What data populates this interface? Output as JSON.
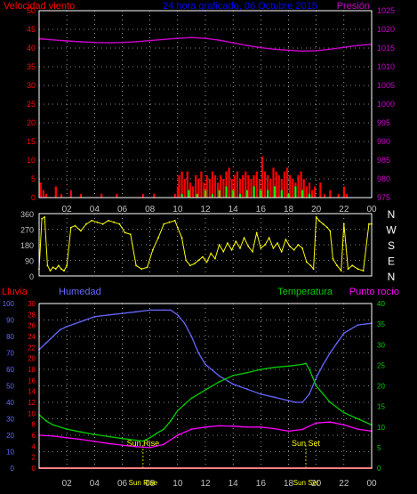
{
  "colors": {
    "background": "#000000",
    "frame": "#ffffff",
    "grid": "#ffffff",
    "wind": "#ff0000",
    "gust": "#00ff00",
    "pressure": "#cc00cc",
    "direction": "#ffff00",
    "humidity": "#6666ff",
    "temperature": "#00cc00",
    "dewpoint": "#ff00ff",
    "rain": "#ff0000",
    "title": "#0000ff",
    "sun": "#ffff00",
    "tick_text": "#c0c0c0"
  },
  "chart_data": [
    {
      "type": "bar",
      "title": "24 hora graficado, 06 Octubre 2015",
      "left_axis_label": "Velocidad viento",
      "right_axis_label": "Presión",
      "x_ticks": [
        "02",
        "04",
        "06",
        "08",
        "10",
        "12",
        "14",
        "16",
        "18",
        "20",
        "22",
        "00"
      ],
      "x_range": [
        0,
        24
      ],
      "y_left_range": [
        0,
        50
      ],
      "y_left_ticks": [
        "0",
        "5",
        "10",
        "15",
        "20",
        "25",
        "30",
        "35",
        "40",
        "45",
        "50"
      ],
      "y_right_range": [
        975,
        1025
      ],
      "y_right_ticks": [
        "975",
        "980",
        "985",
        "990",
        "995",
        "1000",
        "1005",
        "1010",
        "1015",
        "1020",
        "1025"
      ],
      "grid": "dotted",
      "series": [
        {
          "name": "Velocidad viento",
          "axis": "left",
          "style": "bars",
          "color_key": "wind",
          "x": [
            0.1,
            0.3,
            0.5,
            1.2,
            1.6,
            2.3,
            3.0,
            4.5,
            5.6,
            7.5,
            8.3,
            9.8,
            10.0,
            10.1,
            10.3,
            10.5,
            10.7,
            10.9,
            11.1,
            11.3,
            11.5,
            11.7,
            11.9,
            12.1,
            12.3,
            12.5,
            12.7,
            12.9,
            13.1,
            13.3,
            13.5,
            13.7,
            13.9,
            14.1,
            14.3,
            14.5,
            14.7,
            14.9,
            15.1,
            15.3,
            15.5,
            15.7,
            15.9,
            16.1,
            16.3,
            16.5,
            16.7,
            16.9,
            17.1,
            17.3,
            17.5,
            17.7,
            17.9,
            18.1,
            18.3,
            18.5,
            18.7,
            18.9,
            19.1,
            19.3,
            19.5,
            19.7,
            19.9,
            20.3,
            20.6,
            21.0,
            21.6,
            22.0,
            22.2
          ],
          "values": [
            4,
            2,
            1,
            3,
            1,
            2,
            1,
            1,
            1,
            1,
            1,
            1,
            3,
            6,
            7,
            5,
            7,
            4,
            3,
            6,
            5,
            7,
            4,
            6,
            5,
            7,
            6,
            4,
            6,
            5,
            7,
            8,
            5,
            6,
            7,
            5,
            6,
            7,
            6,
            5,
            6,
            7,
            5,
            11,
            7,
            6,
            5,
            8,
            7,
            6,
            5,
            7,
            8,
            6,
            5,
            4,
            6,
            7,
            5,
            3,
            4,
            2,
            3,
            4,
            1,
            2,
            1,
            3,
            1
          ]
        },
        {
          "name": "Racha",
          "axis": "left",
          "style": "bars",
          "color_key": "gust",
          "x": [
            10.3,
            10.8,
            11.4,
            12.0,
            12.5,
            13.0,
            13.5,
            14.0,
            14.5,
            15.0,
            15.5,
            16.0,
            16.5,
            17.0,
            17.5,
            18.0,
            18.5,
            19.0,
            19.5
          ],
          "values": [
            1,
            2,
            1,
            2,
            1,
            2,
            3,
            2,
            1,
            2,
            3,
            2,
            2,
            3,
            2,
            1,
            3,
            2,
            1
          ]
        },
        {
          "name": "Presión",
          "axis": "right",
          "style": "line",
          "color_key": "pressure",
          "x": [
            0,
            1,
            2,
            3,
            4,
            5,
            6,
            7,
            8,
            9,
            10,
            11,
            12,
            13,
            14,
            15,
            16,
            17,
            18,
            19,
            20,
            21,
            22,
            23,
            24
          ],
          "values": [
            1017.5,
            1017.2,
            1016.9,
            1016.7,
            1016.5,
            1016.4,
            1016.5,
            1016.7,
            1017.0,
            1017.3,
            1017.6,
            1017.8,
            1017.6,
            1017.1,
            1016.4,
            1015.7,
            1015.1,
            1014.7,
            1014.4,
            1014.2,
            1014.3,
            1014.7,
            1015.2,
            1015.7,
            1016.0
          ]
        }
      ]
    },
    {
      "type": "line",
      "left_axis_ticks": [
        "0",
        "90",
        "180",
        "270",
        "360"
      ],
      "right_axis_labels": [
        "N",
        "W",
        "S",
        "E",
        "N"
      ],
      "y_range": [
        0,
        360
      ],
      "x_range": [
        0,
        24
      ],
      "x_ticks": [
        "02",
        "04",
        "06",
        "08",
        "10",
        "12",
        "14",
        "16",
        "18",
        "20",
        "22",
        "00"
      ],
      "series": [
        {
          "name": "Dirección viento",
          "color_key": "direction",
          "x": [
            0.0,
            0.2,
            0.4,
            0.6,
            0.8,
            1.0,
            1.2,
            1.4,
            1.6,
            1.8,
            2.0,
            2.3,
            2.6,
            3.0,
            3.4,
            3.8,
            4.2,
            4.6,
            5.0,
            5.4,
            5.8,
            6.2,
            6.6,
            7.0,
            7.4,
            7.8,
            8.2,
            8.6,
            9.0,
            9.4,
            9.8,
            10.0,
            10.3,
            10.6,
            10.9,
            11.2,
            11.5,
            11.8,
            12.1,
            12.4,
            12.7,
            13.0,
            13.3,
            13.6,
            13.9,
            14.2,
            14.5,
            14.8,
            15.1,
            15.4,
            15.7,
            16.0,
            16.3,
            16.6,
            16.9,
            17.2,
            17.5,
            17.8,
            18.1,
            18.4,
            18.7,
            19.0,
            19.3,
            19.6,
            19.8,
            20.0,
            20.2,
            20.5,
            20.8,
            21.0,
            21.2,
            21.5,
            21.8,
            22.0,
            22.3,
            22.6,
            23.0,
            23.4,
            23.8,
            24.0
          ],
          "values": [
            40,
            330,
            340,
            60,
            30,
            50,
            40,
            60,
            40,
            30,
            60,
            280,
            290,
            260,
            300,
            320,
            310,
            300,
            320,
            310,
            300,
            250,
            240,
            60,
            40,
            50,
            150,
            220,
            300,
            310,
            320,
            280,
            220,
            90,
            60,
            70,
            90,
            110,
            80,
            130,
            100,
            180,
            140,
            190,
            150,
            200,
            160,
            220,
            170,
            140,
            250,
            160,
            180,
            220,
            160,
            190,
            140,
            210,
            170,
            150,
            180,
            160,
            80,
            60,
            40,
            340,
            320,
            300,
            280,
            260,
            100,
            60,
            30,
            300,
            40,
            60,
            40,
            30,
            300,
            300
          ]
        }
      ]
    },
    {
      "type": "line",
      "left_labels": [
        "Lluvia",
        "Humedad"
      ],
      "right_labels": [
        "Temperatura",
        "Punto rocío"
      ],
      "annotations": [
        "Sun Rise",
        "Sun Set",
        "Sun Rise",
        "Sun Set"
      ],
      "x_range": [
        0,
        24
      ],
      "x_ticks": [
        "02",
        "04",
        "06",
        "08",
        "10",
        "12",
        "14",
        "16",
        "18",
        "20",
        "22",
        "00"
      ],
      "humidity_axis_range": [
        0,
        100
      ],
      "humidity_ticks": [
        "0",
        "10",
        "20",
        "30",
        "40",
        "50",
        "60",
        "70",
        "80",
        "90",
        "100"
      ],
      "rain_axis_range": [
        0,
        30
      ],
      "rain_ticks": [
        "0",
        "2",
        "4",
        "6",
        "8",
        "10",
        "12",
        "14",
        "16",
        "18",
        "20",
        "22",
        "24",
        "26",
        "28",
        "30"
      ],
      "temperature_axis_range": [
        0,
        40
      ],
      "temperature_ticks": [
        "0",
        "5",
        "10",
        "15",
        "20",
        "25",
        "30",
        "35",
        "40"
      ],
      "sun_rise_hour": 7.5,
      "sun_set_hour": 19.25,
      "series": [
        {
          "name": "Humedad",
          "axis": "humidity",
          "color_key": "humidity",
          "x": [
            0,
            0.5,
            1,
            1.5,
            2,
            3,
            4,
            5,
            6,
            7,
            8,
            8.5,
            9,
            9.5,
            10,
            10.5,
            11,
            11.5,
            12,
            13,
            14,
            15,
            16,
            17,
            18,
            18.5,
            19,
            19.5,
            20,
            20.5,
            21,
            21.5,
            22,
            23,
            24
          ],
          "values": [
            72,
            76,
            80,
            84,
            86,
            89,
            92,
            93,
            94,
            95,
            96,
            96,
            96,
            96,
            93,
            88,
            80,
            70,
            63,
            56,
            51,
            48,
            45,
            43,
            41,
            40,
            40,
            45,
            55,
            63,
            70,
            76,
            82,
            87,
            88
          ]
        },
        {
          "name": "Temperatura",
          "axis": "temperature",
          "color_key": "temperature",
          "x": [
            0,
            0.5,
            1,
            2,
            3,
            4,
            5,
            6,
            7,
            7.5,
            8,
            8.5,
            9,
            9.5,
            10,
            10.5,
            11,
            12,
            13,
            14,
            15,
            16,
            17,
            18,
            19,
            19.25,
            19.5,
            20,
            20.5,
            21,
            22,
            23,
            24
          ],
          "values": [
            13,
            11.5,
            10.5,
            9.5,
            8.8,
            8.2,
            7.7,
            7.2,
            6.8,
            6.6,
            7.4,
            8.5,
            9.5,
            11.5,
            14,
            15.5,
            17,
            19,
            21,
            22.5,
            23.2,
            24,
            24.5,
            24.8,
            25.2,
            25.5,
            24,
            20,
            18,
            16,
            13.5,
            12,
            10.5
          ]
        },
        {
          "name": "Punto rocío",
          "axis": "temperature",
          "color_key": "dewpoint",
          "x": [
            0,
            1,
            2,
            3,
            4,
            5,
            6,
            7,
            8,
            9,
            10,
            11,
            12,
            13,
            14,
            15,
            16,
            17,
            18,
            19,
            20,
            21,
            22,
            23,
            24
          ],
          "values": [
            8,
            7.8,
            7.4,
            7,
            6.5,
            6,
            5.6,
            5.2,
            5,
            5.8,
            8,
            9.5,
            10,
            10.3,
            10.2,
            10,
            10,
            9.6,
            9,
            9.4,
            11,
            11.2,
            10.5,
            9.5,
            9
          ]
        },
        {
          "name": "Lluvia",
          "axis": "rain",
          "color_key": "rain",
          "x": [
            0,
            24
          ],
          "values": [
            0,
            0
          ]
        }
      ]
    }
  ]
}
